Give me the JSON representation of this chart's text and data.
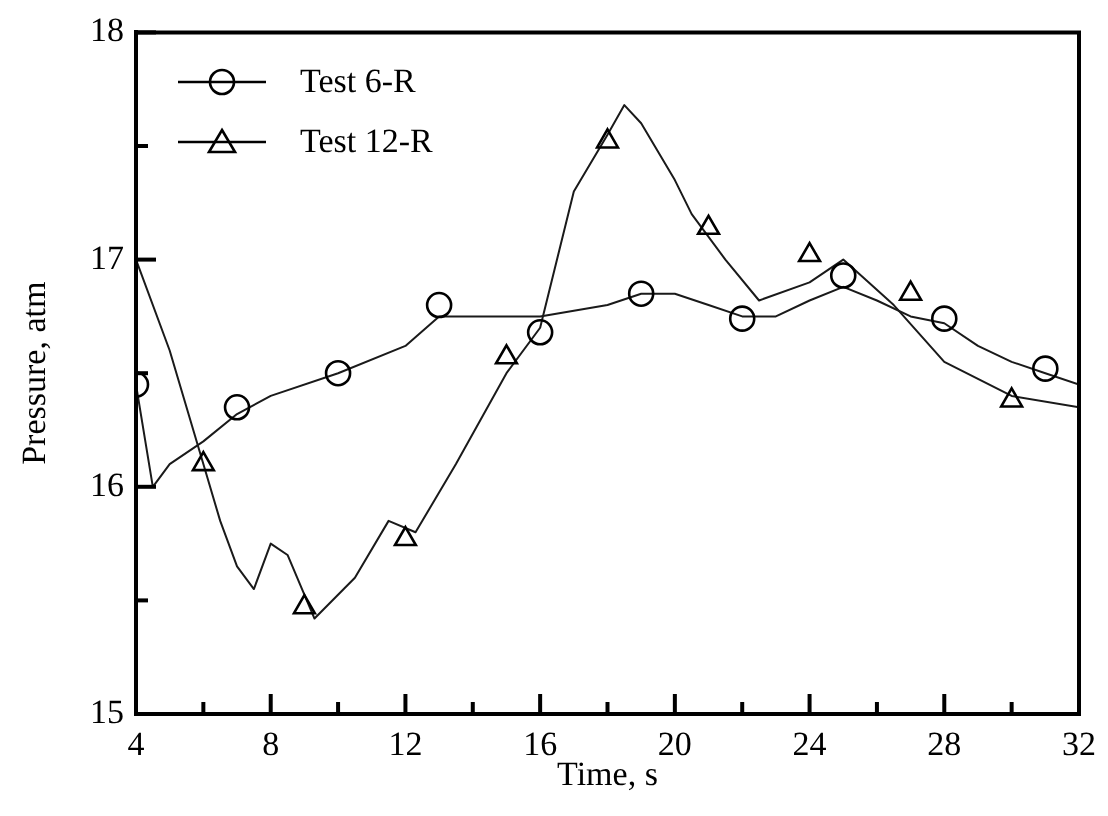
{
  "chart_data": {
    "type": "line",
    "xlabel": "Time, s",
    "ylabel": "Pressure, atm",
    "xlim": [
      4,
      32
    ],
    "ylim": [
      15,
      18
    ],
    "xticks": [
      4,
      {
        "value": 6,
        "label": null
      },
      8,
      {
        "value": 10,
        "label": null
      },
      12,
      {
        "value": 14,
        "label": null
      },
      16,
      {
        "value": 18,
        "label": null
      },
      20,
      {
        "value": 22,
        "label": null
      },
      24,
      {
        "value": 26,
        "label": null
      },
      28,
      {
        "value": 30,
        "label": null
      },
      32
    ],
    "yticks": [
      15,
      {
        "value": 15.5,
        "label": null
      },
      16,
      {
        "value": 16.5,
        "label": null
      },
      17,
      {
        "value": 17.5,
        "label": null
      },
      18
    ],
    "grid": false,
    "legend": "top left",
    "line_style": "solid",
    "series": [
      {
        "name": "Test 6-R",
        "type": "scatter",
        "marker": "circle",
        "color": "#000000",
        "x": [
          4,
          7,
          10,
          13,
          16,
          19,
          22,
          25,
          28,
          31
        ],
        "values": [
          16.45,
          16.35,
          16.5,
          16.8,
          16.68,
          16.85,
          16.74,
          16.93,
          16.74,
          16.52
        ]
      },
      {
        "name": "Test 12-R",
        "type": "scatter",
        "marker": "triangle",
        "color": "#000000",
        "x": [
          6,
          9,
          12,
          15,
          18,
          21,
          24,
          27,
          30
        ],
        "values": [
          16.1,
          15.47,
          15.77,
          16.57,
          17.52,
          17.14,
          17.02,
          16.85,
          16.38
        ]
      },
      {
        "marker": "none",
        "color": "#1a1a1a",
        "x": [
          4,
          4.5,
          5,
          6,
          7,
          8,
          10,
          12,
          13,
          14,
          16,
          18,
          19,
          20,
          21,
          22,
          23,
          24,
          25,
          26,
          27,
          28,
          29,
          30,
          31,
          32
        ],
        "values": [
          16.45,
          16.0,
          16.1,
          16.2,
          16.32,
          16.4,
          16.5,
          16.62,
          16.75,
          16.75,
          16.75,
          16.8,
          16.85,
          16.85,
          16.8,
          16.75,
          16.75,
          16.82,
          16.88,
          16.82,
          16.75,
          16.72,
          16.62,
          16.55,
          16.5,
          16.45
        ]
      },
      {
        "marker": "none",
        "color": "#1a1a1a",
        "x": [
          4,
          5,
          6,
          6.5,
          7,
          7.5,
          8,
          8.5,
          9.3,
          10.5,
          11.5,
          12.3,
          13.5,
          15,
          16,
          17,
          18,
          18.5,
          19,
          20,
          20.5,
          21.5,
          22.5,
          24,
          25,
          26.5,
          28,
          30,
          32
        ],
        "values": [
          17.0,
          16.6,
          16.1,
          15.85,
          15.65,
          15.55,
          15.75,
          15.7,
          15.42,
          15.6,
          15.85,
          15.8,
          16.1,
          16.5,
          16.7,
          17.3,
          17.55,
          17.68,
          17.6,
          17.35,
          17.2,
          17.0,
          16.82,
          16.9,
          17.0,
          16.8,
          16.55,
          16.4,
          16.35
        ]
      }
    ]
  }
}
